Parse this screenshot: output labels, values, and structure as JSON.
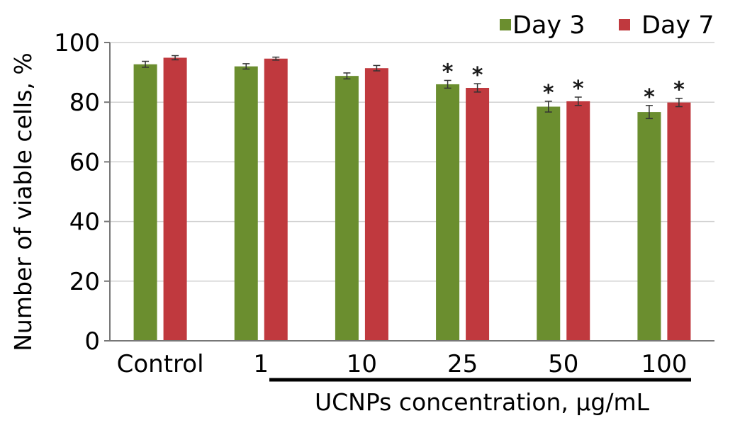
{
  "chart_data": {
    "type": "bar",
    "categories": [
      "Control",
      "1",
      "10",
      "25",
      "50",
      "100"
    ],
    "series": [
      {
        "name": "Day 3",
        "color": "#6b8e2f",
        "values": [
          92.7,
          92.0,
          88.8,
          86.0,
          78.5,
          76.7
        ],
        "errors": [
          1.0,
          0.9,
          1.0,
          1.3,
          1.8,
          2.2
        ],
        "significant": [
          false,
          false,
          false,
          true,
          true,
          true
        ]
      },
      {
        "name": "Day 7",
        "color": "#c0393e",
        "values": [
          94.9,
          94.6,
          91.4,
          84.8,
          80.3,
          79.9
        ],
        "errors": [
          0.7,
          0.5,
          0.9,
          1.4,
          1.4,
          1.4
        ],
        "significant": [
          false,
          false,
          false,
          true,
          true,
          true
        ]
      }
    ],
    "ylabel": "Number of viable cells, %",
    "xlabel": "UCNPs concentration, µg/mL",
    "yticks": [
      "0",
      "20",
      "40",
      "60",
      "80",
      "100"
    ],
    "ylim": [
      0,
      100
    ],
    "grid": true,
    "legend_position": "top-right",
    "significance_marker": "*"
  }
}
